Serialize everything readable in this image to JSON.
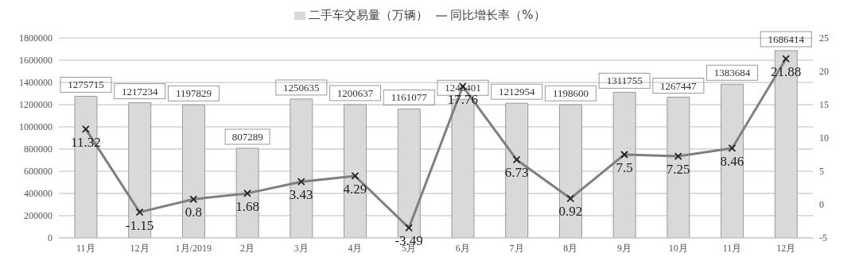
{
  "chart_data": {
    "type": "bar",
    "categories": [
      "11月",
      "12月",
      "1月/2019",
      "2月",
      "3月",
      "4月",
      "5月",
      "6月",
      "7月",
      "8月",
      "9月",
      "10月",
      "11月",
      "12月"
    ],
    "series": [
      {
        "name": "二手车交易量（万辆）",
        "color": "#d9d9d9",
        "values": [
          1275715,
          1217234,
          1197829,
          807289,
          1250635,
          1200637,
          1161077,
          1248401,
          1212954,
          1198600,
          1311755,
          1267447,
          1383684,
          1686414
        ]
      },
      {
        "name": "同比增长率（%）",
        "type": "line",
        "axis": "y2",
        "color": "#7f7f7f",
        "values": [
          11.32,
          -1.15,
          0.8,
          1.68,
          3.43,
          4.29,
          -3.49,
          17.76,
          6.73,
          0.92,
          7.5,
          7.25,
          8.46,
          21.88
        ]
      }
    ],
    "ylim": [
      0,
      1800000
    ],
    "yticks": [
      0,
      200000,
      400000,
      600000,
      800000,
      1000000,
      1200000,
      1400000,
      1600000,
      1800000
    ],
    "y2lim": [
      -5,
      25
    ],
    "y2ticks": [
      -5,
      0,
      5,
      10,
      15,
      20,
      25
    ],
    "grid": "y",
    "legend": "top",
    "marker": "cross",
    "line_style": "solid",
    "data_labels": true
  }
}
